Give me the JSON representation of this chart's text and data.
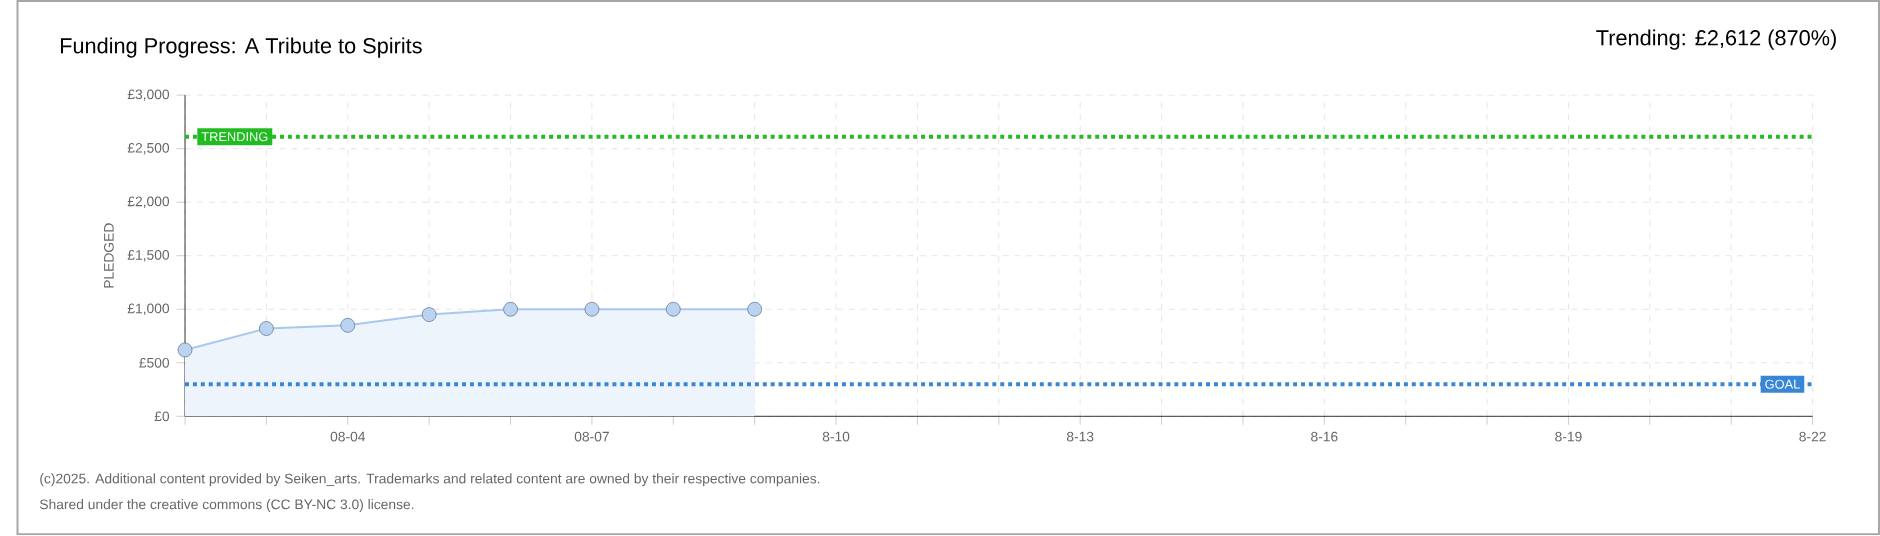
{
  "chart_data": {
    "type": "area",
    "title": "Funding Progress: A Tribute to Spirits",
    "subtitle": "Trending: £2,612 (870%)",
    "ylabel": "PLEDGED",
    "categories": [
      null,
      null,
      "08-04",
      null,
      null,
      "08-07",
      null,
      null,
      "8-10",
      null,
      null,
      "8-13",
      null,
      null,
      "8-16",
      null,
      null,
      "8-19",
      null,
      null,
      "8-22"
    ],
    "series": [
      {
        "color": "#a8c8ee",
        "values": [
          620,
          820,
          850,
          950,
          1000,
          1000,
          1000,
          1000,
          null,
          null,
          null,
          null,
          null,
          null,
          null,
          null,
          null,
          null,
          null,
          null,
          null
        ]
      }
    ],
    "ylim": [
      0,
      3000
    ],
    "yticks": [
      {
        "value": 0,
        "label": "£0"
      },
      {
        "value": 500,
        "label": "£500"
      },
      {
        "value": 1000,
        "label": "£1,000"
      },
      {
        "value": 1500,
        "label": "£1,500"
      },
      {
        "value": 2000,
        "label": "£2,000"
      },
      {
        "value": 2500,
        "label": "£2,500"
      },
      {
        "value": 3000,
        "label": "£3,000"
      }
    ],
    "ref_lines": [
      {
        "axis": "y",
        "value": 2612,
        "label": "TRENDING",
        "color": "#22bb22",
        "line_style": "dotted"
      },
      {
        "axis": "y",
        "value": 300,
        "label": "GOAL",
        "color": "#3a86d6",
        "line_style": "dotted"
      }
    ],
    "grid": true,
    "marker": "circle",
    "annotations": [
      "(c)2025. Additional content provided by Seiken_arts. Trademarks and related content are owned by their respective companies.",
      "Shared under the creative commons (CC BY-NC 3.0) license."
    ]
  }
}
